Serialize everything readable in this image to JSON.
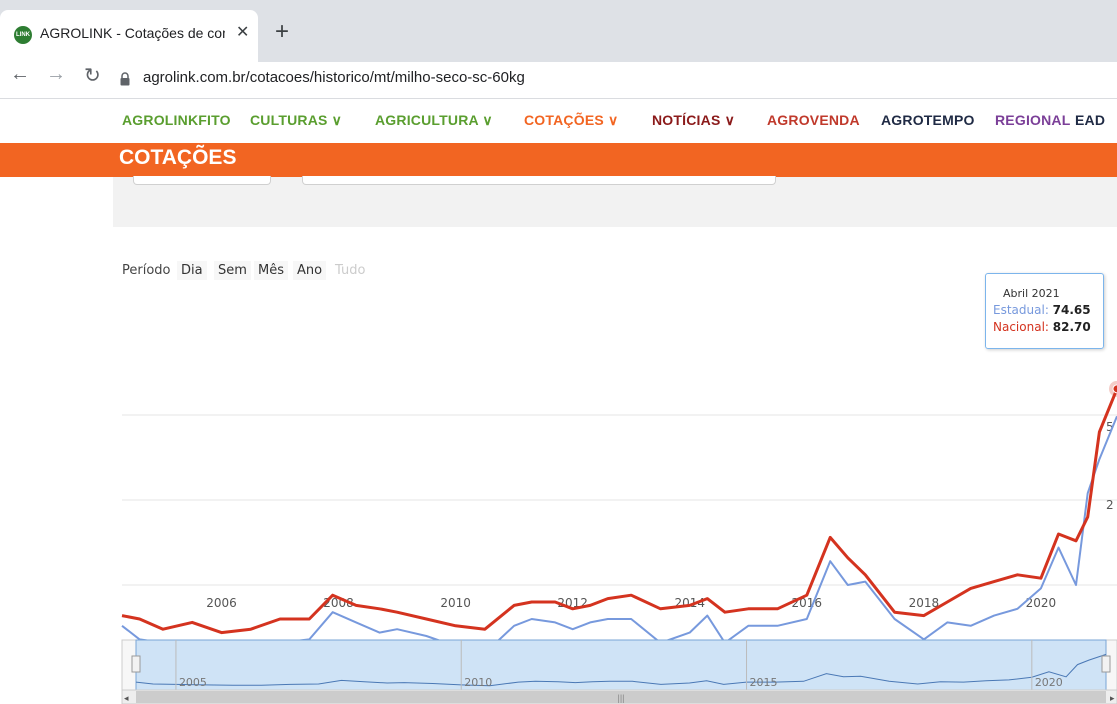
{
  "browser": {
    "tab_title": "AGROLINK - Cotações de commc",
    "tab_favicon_text": "LINK",
    "url": "agrolink.com.br/cotacoes/historico/mt/milho-seco-sc-60kg"
  },
  "site_nav": {
    "items": [
      {
        "label": "AGROLINKFITO",
        "color": "#5a9e2f"
      },
      {
        "label": "CULTURAS ∨",
        "color": "#5a9e2f"
      },
      {
        "label": "AGRICULTURA ∨",
        "color": "#5a9e2f"
      },
      {
        "label": "COTAÇÕES ∨",
        "color": "#f26522"
      },
      {
        "label": "NOTÍCIAS ∨",
        "color": "#8b1a1a"
      },
      {
        "label": "AGROVENDA",
        "color": "#c0392b"
      },
      {
        "label": "AGROTEMPO",
        "color": "#1f2a44"
      },
      {
        "label": "REGIONAL",
        "color": "#7b3f98"
      },
      {
        "label": "EAD",
        "color": "#1f2a44"
      }
    ],
    "section_title": "COTAÇÕES",
    "section_color": "#f26522"
  },
  "range_selector": {
    "label": "Período",
    "buttons": [
      {
        "label": "Dia",
        "enabled": true
      },
      {
        "label": "Sem",
        "enabled": true
      },
      {
        "label": "Mês",
        "enabled": true
      },
      {
        "label": "Ano",
        "enabled": true
      },
      {
        "label": "Tudo",
        "enabled": false
      }
    ]
  },
  "tooltip": {
    "date": "Abril 2021",
    "series1_label": "Estadual",
    "series1_value": "74.65",
    "series2_label": "Nacional",
    "series2_value": "82.70"
  },
  "chart_data": {
    "type": "line",
    "x_ticks": [
      "2006",
      "2008",
      "2010",
      "2012",
      "2014",
      "2016",
      "2018",
      "2020"
    ],
    "y_ticks_partial": [
      "5",
      "2"
    ],
    "navigator_ticks": [
      "2005",
      "2010",
      "2015",
      "2020"
    ],
    "colors": {
      "Estadual": "#7799dd",
      "Nacional": "#d4331f"
    },
    "series": [
      {
        "name": "Estadual",
        "x": [
          2004.3,
          2004.6,
          2005.0,
          2005.5,
          2006.0,
          2006.5,
          2007.0,
          2007.5,
          2007.9,
          2008.3,
          2008.7,
          2009.0,
          2009.5,
          2010.0,
          2010.5,
          2011.0,
          2011.3,
          2011.7,
          2012.0,
          2012.3,
          2012.6,
          2013.0,
          2013.5,
          2014.0,
          2014.3,
          2014.6,
          2015.0,
          2015.5,
          2016.0,
          2016.4,
          2016.7,
          2017.0,
          2017.5,
          2018.0,
          2018.4,
          2018.8,
          2019.2,
          2019.6,
          2020.0,
          2020.3,
          2020.6,
          2020.8,
          2021.0,
          2021.3
        ],
        "values": [
          13,
          9,
          8,
          7,
          6,
          6,
          8,
          9,
          17,
          14,
          11,
          12,
          10,
          7,
          5,
          13,
          15,
          14,
          12,
          14,
          15,
          15,
          8,
          11,
          16,
          8,
          13,
          13,
          15,
          32,
          25,
          26,
          15,
          9,
          14,
          13,
          16,
          18,
          24,
          36,
          25,
          52,
          62,
          74.65
        ]
      },
      {
        "name": "Nacional",
        "x": [
          2004.3,
          2004.6,
          2005.0,
          2005.5,
          2006.0,
          2006.5,
          2007.0,
          2007.5,
          2007.9,
          2008.3,
          2008.7,
          2009.0,
          2009.5,
          2010.0,
          2010.5,
          2011.0,
          2011.3,
          2011.7,
          2012.0,
          2012.3,
          2012.6,
          2013.0,
          2013.5,
          2014.0,
          2014.3,
          2014.6,
          2015.0,
          2015.5,
          2016.0,
          2016.4,
          2016.7,
          2017.0,
          2017.5,
          2018.0,
          2018.4,
          2018.8,
          2019.2,
          2019.6,
          2020.0,
          2020.3,
          2020.6,
          2020.8,
          2021.0,
          2021.3
        ],
        "values": [
          16,
          15,
          12,
          14,
          11,
          12,
          15,
          15,
          22,
          19,
          18,
          17,
          15,
          13,
          12,
          19,
          20,
          20,
          18,
          19,
          21,
          22,
          18,
          19,
          21,
          17,
          18,
          18,
          22,
          39,
          33,
          28,
          17,
          16,
          20,
          24,
          26,
          28,
          27,
          40,
          38,
          45,
          70,
          82.7
        ]
      }
    ]
  }
}
